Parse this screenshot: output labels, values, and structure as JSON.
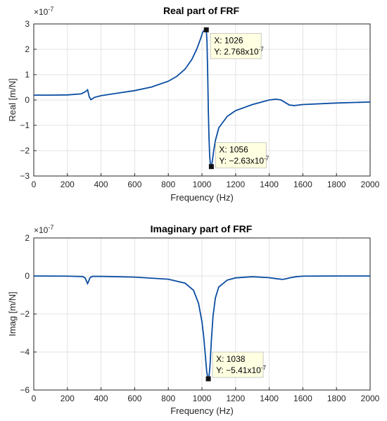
{
  "chart_data": [
    {
      "type": "line",
      "title": "Real part of FRF",
      "xlabel": "Frequency (Hz)",
      "ylabel": "Real [m/N]",
      "xlim": [
        0,
        2000
      ],
      "ylim": [
        -3,
        3
      ],
      "y_exponent": "×10",
      "y_exponent_power": "-7",
      "grid": true,
      "xticks": [
        "0",
        "200",
        "400",
        "600",
        "800",
        "1000",
        "1200",
        "1400",
        "1600",
        "1800",
        "2000"
      ],
      "yticks": [
        "3",
        "2",
        "1",
        "0",
        "-1",
        "-2",
        "-3"
      ],
      "color": "#0a4da2",
      "series": [
        {
          "x": [
            0,
            100,
            200,
            280,
            300,
            315,
            320,
            330,
            340,
            360,
            400,
            500,
            600,
            700,
            800,
            850,
            900,
            940,
            970,
            990,
            1005,
            1015,
            1020,
            1026,
            1030,
            1034,
            1038,
            1042,
            1046,
            1050,
            1056,
            1062,
            1070,
            1080,
            1100,
            1150,
            1200,
            1300,
            1400,
            1440,
            1470,
            1500,
            1520,
            1550,
            1600,
            1800,
            2000
          ],
          "y": [
            0.19,
            0.19,
            0.2,
            0.24,
            0.3,
            0.37,
            0.4,
            0.12,
            0.01,
            0.1,
            0.17,
            0.27,
            0.37,
            0.51,
            0.74,
            0.93,
            1.22,
            1.6,
            2.02,
            2.38,
            2.68,
            2.76,
            2.77,
            2.768,
            2.3,
            1.1,
            -0.4,
            -1.5,
            -2.2,
            -2.55,
            -2.63,
            -2.4,
            -2.0,
            -1.6,
            -1.1,
            -0.65,
            -0.42,
            -0.18,
            0.0,
            0.03,
            0.0,
            -0.12,
            -0.2,
            -0.22,
            -0.18,
            -0.12,
            -0.08
          ]
        }
      ],
      "datatips": [
        {
          "x": 1026,
          "y": 2.768,
          "x_label": "X: 1026",
          "y_label": "Y: 2.768x10",
          "y_power": "-7"
        },
        {
          "x": 1056,
          "y": -2.63,
          "x_label": "X: 1056",
          "y_label": "Y: −2.63x10",
          "y_power": "-7"
        }
      ]
    },
    {
      "type": "line",
      "title": "Imaginary part of FRF",
      "xlabel": "Frequency (Hz)",
      "ylabel": "Imag [m/N]",
      "xlim": [
        0,
        2000
      ],
      "ylim": [
        -6,
        2
      ],
      "y_exponent": "×10",
      "y_exponent_power": "-7",
      "grid": true,
      "xticks": [
        "0",
        "200",
        "400",
        "600",
        "800",
        "1000",
        "1200",
        "1400",
        "1600",
        "1800",
        "2000"
      ],
      "yticks": [
        "2",
        "0",
        "-2",
        "-4",
        "-6"
      ],
      "color": "#0a4da2",
      "series": [
        {
          "x": [
            0,
            200,
            290,
            305,
            315,
            320,
            325,
            335,
            350,
            400,
            600,
            800,
            900,
            950,
            980,
            1000,
            1010,
            1020,
            1028,
            1034,
            1038,
            1042,
            1048,
            1056,
            1066,
            1080,
            1100,
            1150,
            1200,
            1300,
            1400,
            1450,
            1480,
            1500,
            1520,
            1560,
            1600,
            1800,
            2000
          ],
          "y": [
            0.0,
            -0.01,
            -0.03,
            -0.1,
            -0.3,
            -0.4,
            -0.3,
            -0.08,
            -0.02,
            -0.02,
            -0.06,
            -0.17,
            -0.38,
            -0.75,
            -1.45,
            -2.4,
            -3.15,
            -4.15,
            -5.0,
            -5.35,
            -5.41,
            -5.3,
            -4.7,
            -3.4,
            -2.1,
            -1.15,
            -0.58,
            -0.22,
            -0.1,
            -0.04,
            -0.09,
            -0.15,
            -0.18,
            -0.15,
            -0.1,
            -0.04,
            -0.01,
            0.0,
            0.0
          ]
        }
      ],
      "datatips": [
        {
          "x": 1038,
          "y": -5.41,
          "x_label": "X: 1038",
          "y_label": "Y: −5.41x10",
          "y_power": "-7"
        }
      ]
    }
  ]
}
